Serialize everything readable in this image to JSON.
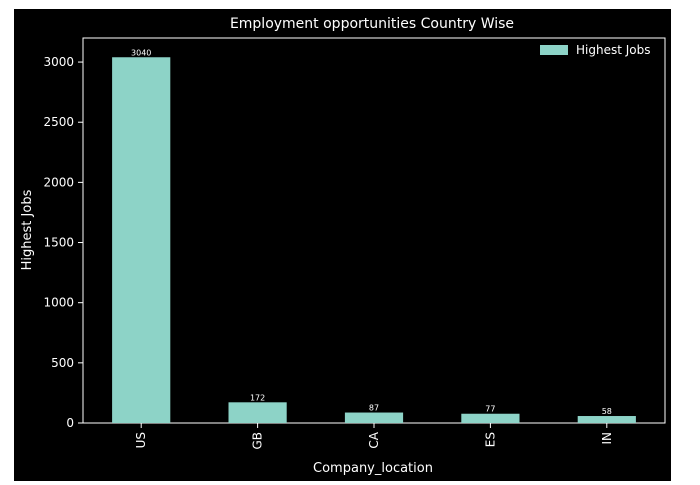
{
  "chart_data": {
    "type": "bar",
    "title": "Employment opportunities Country Wise",
    "xlabel": "Company_location",
    "ylabel": "Highest Jobs",
    "categories": [
      "US",
      "GB",
      "CA",
      "ES",
      "IN"
    ],
    "series": [
      {
        "name": "Highest Jobs",
        "values": [
          3040,
          172,
          87,
          77,
          58
        ]
      }
    ],
    "ylim": [
      0,
      3200
    ],
    "yticks": [
      0,
      500,
      1000,
      1500,
      2000,
      2500,
      3000
    ],
    "data_labels": [
      "3040",
      "172",
      "87",
      "77",
      "58"
    ],
    "legend_position": "top-right",
    "grid": false,
    "colors": {
      "background": "#000000",
      "bar": "#8dd3c7",
      "text": "#ffffff"
    }
  }
}
